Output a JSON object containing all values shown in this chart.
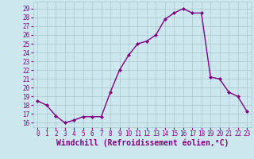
{
  "hours": [
    0,
    1,
    2,
    3,
    4,
    5,
    6,
    7,
    8,
    9,
    10,
    11,
    12,
    13,
    14,
    15,
    16,
    17,
    18,
    19,
    20,
    21,
    22,
    23
  ],
  "values": [
    18.5,
    18.0,
    16.8,
    16.0,
    16.3,
    16.7,
    16.7,
    16.7,
    19.5,
    22.0,
    23.7,
    25.0,
    25.3,
    26.0,
    27.8,
    28.5,
    29.0,
    28.5,
    28.5,
    21.2,
    21.0,
    19.5,
    19.0,
    17.3
  ],
  "line_color": "#800080",
  "marker": "D",
  "marker_size": 2,
  "bg_color": "#cce8ee",
  "grid_color": "#aac8d0",
  "xlabel": "Windchill (Refroidissement éolien,°C)",
  "xlabel_color": "#800080",
  "tick_color": "#800080",
  "ylim": [
    15.5,
    29.8
  ],
  "xlim": [
    -0.5,
    23.5
  ],
  "yticks": [
    16,
    17,
    18,
    19,
    20,
    21,
    22,
    23,
    24,
    25,
    26,
    27,
    28,
    29
  ],
  "xticks": [
    0,
    1,
    2,
    3,
    4,
    5,
    6,
    7,
    8,
    9,
    10,
    11,
    12,
    13,
    14,
    15,
    16,
    17,
    18,
    19,
    20,
    21,
    22,
    23
  ],
  "tick_fontsize": 5.5,
  "xlabel_fontsize": 7.0,
  "linewidth": 1.0
}
